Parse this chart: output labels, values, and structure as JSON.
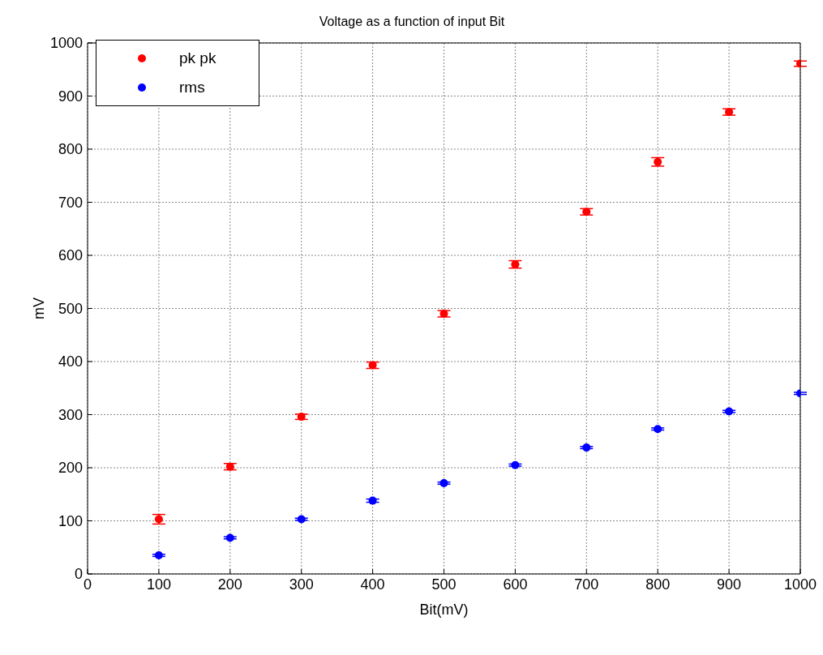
{
  "chart_data": {
    "type": "scatter",
    "title": "Voltage as a function of input Bit",
    "xlabel": "Bit(mV)",
    "ylabel": "mV",
    "x": [
      100,
      200,
      300,
      400,
      500,
      600,
      700,
      800,
      900,
      1000
    ],
    "series": [
      {
        "name": "pk pk",
        "color": "#ff0000",
        "values": [
          103,
          202,
          296,
          393,
          490,
          583,
          682,
          776,
          870,
          961
        ],
        "errors": [
          9,
          6,
          5,
          6,
          6,
          7,
          6,
          8,
          6,
          5
        ]
      },
      {
        "name": "rms",
        "color": "#0000ff",
        "values": [
          35,
          68,
          103,
          138,
          171,
          205,
          238,
          273,
          306,
          340
        ],
        "errors": [
          2,
          2,
          2,
          3,
          2,
          2,
          2,
          2,
          2,
          2
        ]
      }
    ],
    "xlim": [
      0,
      1000
    ],
    "xticks": [
      0,
      100,
      200,
      300,
      400,
      500,
      600,
      700,
      800,
      900,
      1000
    ],
    "ylim": [
      0,
      1000
    ],
    "yticks": [
      0,
      100,
      200,
      300,
      400,
      500,
      600,
      700,
      800,
      900,
      1000
    ],
    "grid": true,
    "legend": "top left",
    "marker": "circle"
  }
}
